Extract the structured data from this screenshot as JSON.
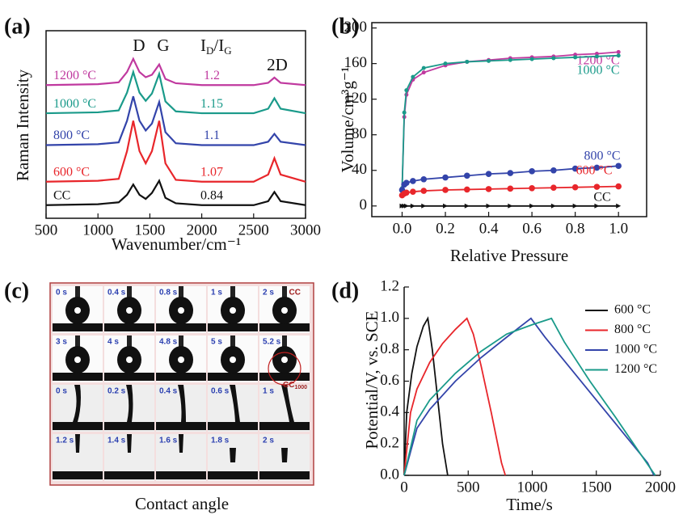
{
  "chart_data": [
    {
      "type": "line",
      "label": "(a)",
      "xlabel": "Wavenumber/cm⁻¹",
      "ylabel": "Raman Intensity",
      "x": [
        500,
        1000,
        1200,
        1280,
        1340,
        1400,
        1460,
        1520,
        1590,
        1650,
        1750,
        2000,
        2500,
        2640,
        2700,
        2760,
        3000
      ],
      "xlim": [
        500,
        3000
      ],
      "xticks": [
        500,
        1000,
        1500,
        2000,
        2500,
        3000
      ],
      "ylim": [
        0,
        100
      ],
      "peak_labels": [
        "D",
        "G",
        "2D"
      ],
      "ratio_header": [
        "I",
        "D",
        "/I",
        "G"
      ],
      "series": [
        {
          "name": "1200 °C",
          "color": "#c0399f",
          "ratio": 1.2,
          "values": [
            71,
            71.5,
            72.5,
            78,
            85,
            78,
            75.2,
            76.5,
            82,
            74.3,
            72,
            71,
            71,
            72.2,
            75,
            72.2,
            71
          ]
        },
        {
          "name": "1000 °C",
          "color": "#1a9a8a",
          "ratio": 1.15,
          "values": [
            56,
            56.5,
            57.5,
            67,
            78,
            67,
            62.6,
            66.5,
            77,
            62.3,
            57,
            56,
            56,
            58.4,
            64,
            58.4,
            56
          ]
        },
        {
          "name": "800 °C",
          "color": "#3344aa",
          "ratio": 1.1,
          "values": [
            39,
            39.5,
            40.5,
            52,
            65,
            52,
            46.8,
            50.5,
            62,
            45.9,
            40,
            39,
            39,
            40.8,
            45,
            40.8,
            39
          ]
        },
        {
          "name": "600 °C",
          "color": "#e8262b",
          "ratio": 1.07,
          "values": [
            19.5,
            20,
            21,
            35.8,
            52,
            35.8,
            29.3,
            35.8,
            52,
            29.3,
            20.5,
            19.5,
            19.5,
            23.3,
            32,
            23.3,
            19.5
          ]
        },
        {
          "name": "CC",
          "color": "#111111",
          "ratio": 0.84,
          "values": [
            7,
            7.5,
            8.5,
            12.5,
            18,
            12.5,
            10.3,
            13.5,
            20,
            10.9,
            8,
            7,
            7,
            9.1,
            14,
            9.1,
            7
          ]
        }
      ]
    },
    {
      "type": "line",
      "label": "(b)",
      "xlabel": "Relative Pressure",
      "ylabel": "Volume/cm³g⁻¹",
      "markers": true,
      "x": [
        0,
        0.01,
        0.02,
        0.05,
        0.1,
        0.2,
        0.3,
        0.4,
        0.5,
        0.6,
        0.7,
        0.8,
        0.9,
        1.0
      ],
      "xlim": [
        -0.14,
        1.13
      ],
      "xticks": [
        {
          "value": 0,
          "label": "0.0"
        },
        {
          "value": 0.2,
          "label": "0.2"
        },
        {
          "value": 0.4,
          "label": "0.4"
        },
        {
          "value": 0.6,
          "label": "0.6"
        },
        {
          "value": 0.8,
          "label": "0.8"
        },
        {
          "value": 1,
          "label": "1.0"
        }
      ],
      "ylim": [
        -12,
        206
      ],
      "yticks": [
        0,
        40,
        80,
        120,
        160,
        200
      ],
      "series": [
        {
          "name": "1200 °C",
          "color": "#c0399f",
          "values": [
            20,
            100,
            125,
            142,
            150,
            158,
            162,
            164,
            166,
            167,
            168,
            170,
            171,
            173
          ]
        },
        {
          "name": "1000 °C",
          "color": "#1a9a8a",
          "values": [
            20,
            105,
            130,
            145,
            155,
            160,
            162,
            163,
            164,
            165,
            166,
            167,
            168,
            169
          ]
        },
        {
          "name": "800 °C",
          "color": "#3344aa",
          "values": [
            18,
            24,
            26,
            28,
            30,
            32,
            34,
            36,
            37,
            39,
            40,
            42,
            43,
            45
          ]
        },
        {
          "name": "600 °C",
          "color": "#e8262b",
          "values": [
            12,
            14,
            15,
            16,
            17,
            18,
            18.5,
            19,
            19.5,
            20,
            20.5,
            21,
            21.5,
            22
          ]
        },
        {
          "name": "CC",
          "color": "#111111",
          "values": [
            0,
            0,
            0,
            0,
            0,
            0,
            0,
            0,
            0,
            0,
            0,
            0,
            0,
            0
          ]
        }
      ]
    },
    {
      "type": "line",
      "label": "(d)",
      "xlabel": "Time/s",
      "ylabel": "Potential/V, vs. SCE",
      "legend": "upper right",
      "xlim": [
        0,
        2000
      ],
      "xticks": [
        0,
        500,
        1000,
        1500,
        2000
      ],
      "ylim": [
        0,
        1.2
      ],
      "yticks": [
        {
          "value": 0,
          "label": "0.0"
        },
        {
          "value": 0.2,
          "label": "0.2"
        },
        {
          "value": 0.4,
          "label": "0.4"
        },
        {
          "value": 0.6,
          "label": "0.6"
        },
        {
          "value": 0.8,
          "label": "0.8"
        },
        {
          "value": 1,
          "label": "1.0"
        },
        {
          "value": 1.2,
          "label": "1.2"
        }
      ],
      "series": [
        {
          "name": "600 °C",
          "color": "#111111",
          "x": [
            0,
            20,
            60,
            100,
            150,
            185,
            220,
            260,
            300,
            340
          ],
          "values": [
            0,
            0.4,
            0.65,
            0.82,
            0.95,
            1.0,
            0.8,
            0.5,
            0.2,
            0
          ]
        },
        {
          "name": "800 °C",
          "color": "#e8262b",
          "x": [
            0,
            50,
            100,
            200,
            300,
            400,
            490,
            540,
            600,
            680,
            760,
            790
          ],
          "values": [
            0,
            0.4,
            0.55,
            0.72,
            0.84,
            0.93,
            1.0,
            0.9,
            0.7,
            0.4,
            0.08,
            0
          ]
        },
        {
          "name": "1000 °C",
          "color": "#3344aa",
          "x": [
            0,
            100,
            200,
            400,
            600,
            800,
            990,
            1100,
            1300,
            1500,
            1700,
            1900,
            1950
          ],
          "values": [
            0,
            0.3,
            0.42,
            0.6,
            0.75,
            0.88,
            1.0,
            0.88,
            0.68,
            0.48,
            0.28,
            0.08,
            0
          ]
        },
        {
          "name": "1200 °C",
          "color": "#1a9a8a",
          "x": [
            0,
            100,
            200,
            400,
            600,
            800,
            1000,
            1150,
            1250,
            1450,
            1650,
            1850,
            1960
          ],
          "values": [
            0,
            0.35,
            0.48,
            0.65,
            0.79,
            0.9,
            0.96,
            1.0,
            0.85,
            0.6,
            0.37,
            0.13,
            0
          ]
        }
      ]
    }
  ],
  "panel_c": {
    "label": "(c)",
    "caption": "Contact angle",
    "tag_top": "CC",
    "tag_bottom": [
      "CC",
      "1000"
    ],
    "rows": [
      [
        "0 s",
        "0.4 s",
        "0.8 s",
        "1 s",
        "2 s"
      ],
      [
        "3 s",
        "4 s",
        "4.8 s",
        "5 s",
        "5.2 s"
      ],
      [
        "0 s",
        "0.2 s",
        "0.4 s",
        "0.6 s",
        "1 s"
      ],
      [
        "1.2 s",
        "1.4 s",
        "1.6 s",
        "1.8 s",
        "2 s"
      ]
    ]
  }
}
